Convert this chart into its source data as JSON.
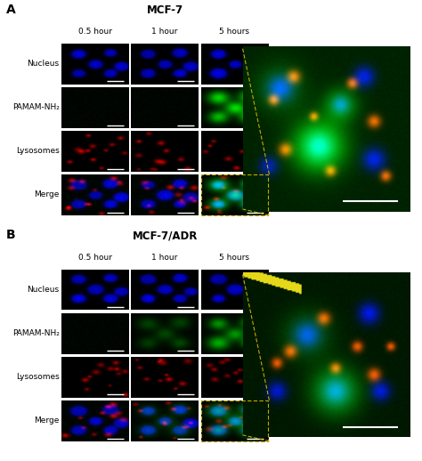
{
  "panel_A_title": "MCF-7",
  "panel_B_title": "MCF-7/ADR",
  "panel_A_label": "A",
  "panel_B_label": "B",
  "time_labels": [
    "0.5 hour",
    "1 hour",
    "5 hours"
  ],
  "row_labels": [
    "Nucleus",
    "PAMAM-NH₂",
    "Lysosomes",
    "Merge"
  ],
  "dashed_line_color": "#c8a800",
  "figure_size": [
    4.74,
    5.18
  ],
  "dpi": 100,
  "title_fontsize": 8.5,
  "time_fontsize": 6.5,
  "row_fontsize": 6.5,
  "panel_letter_fontsize": 10,
  "nucleus_intensities_A": [
    0.85,
    0.85,
    0.85
  ],
  "green_intensities_A": [
    0.05,
    0.15,
    0.85
  ],
  "red_intensities_A": [
    0.75,
    0.75,
    0.75
  ],
  "nucleus_intensities_B": [
    0.85,
    0.85,
    0.85
  ],
  "green_intensities_B": [
    0.05,
    0.25,
    0.65
  ],
  "red_intensities_B": [
    0.75,
    0.75,
    0.75
  ]
}
